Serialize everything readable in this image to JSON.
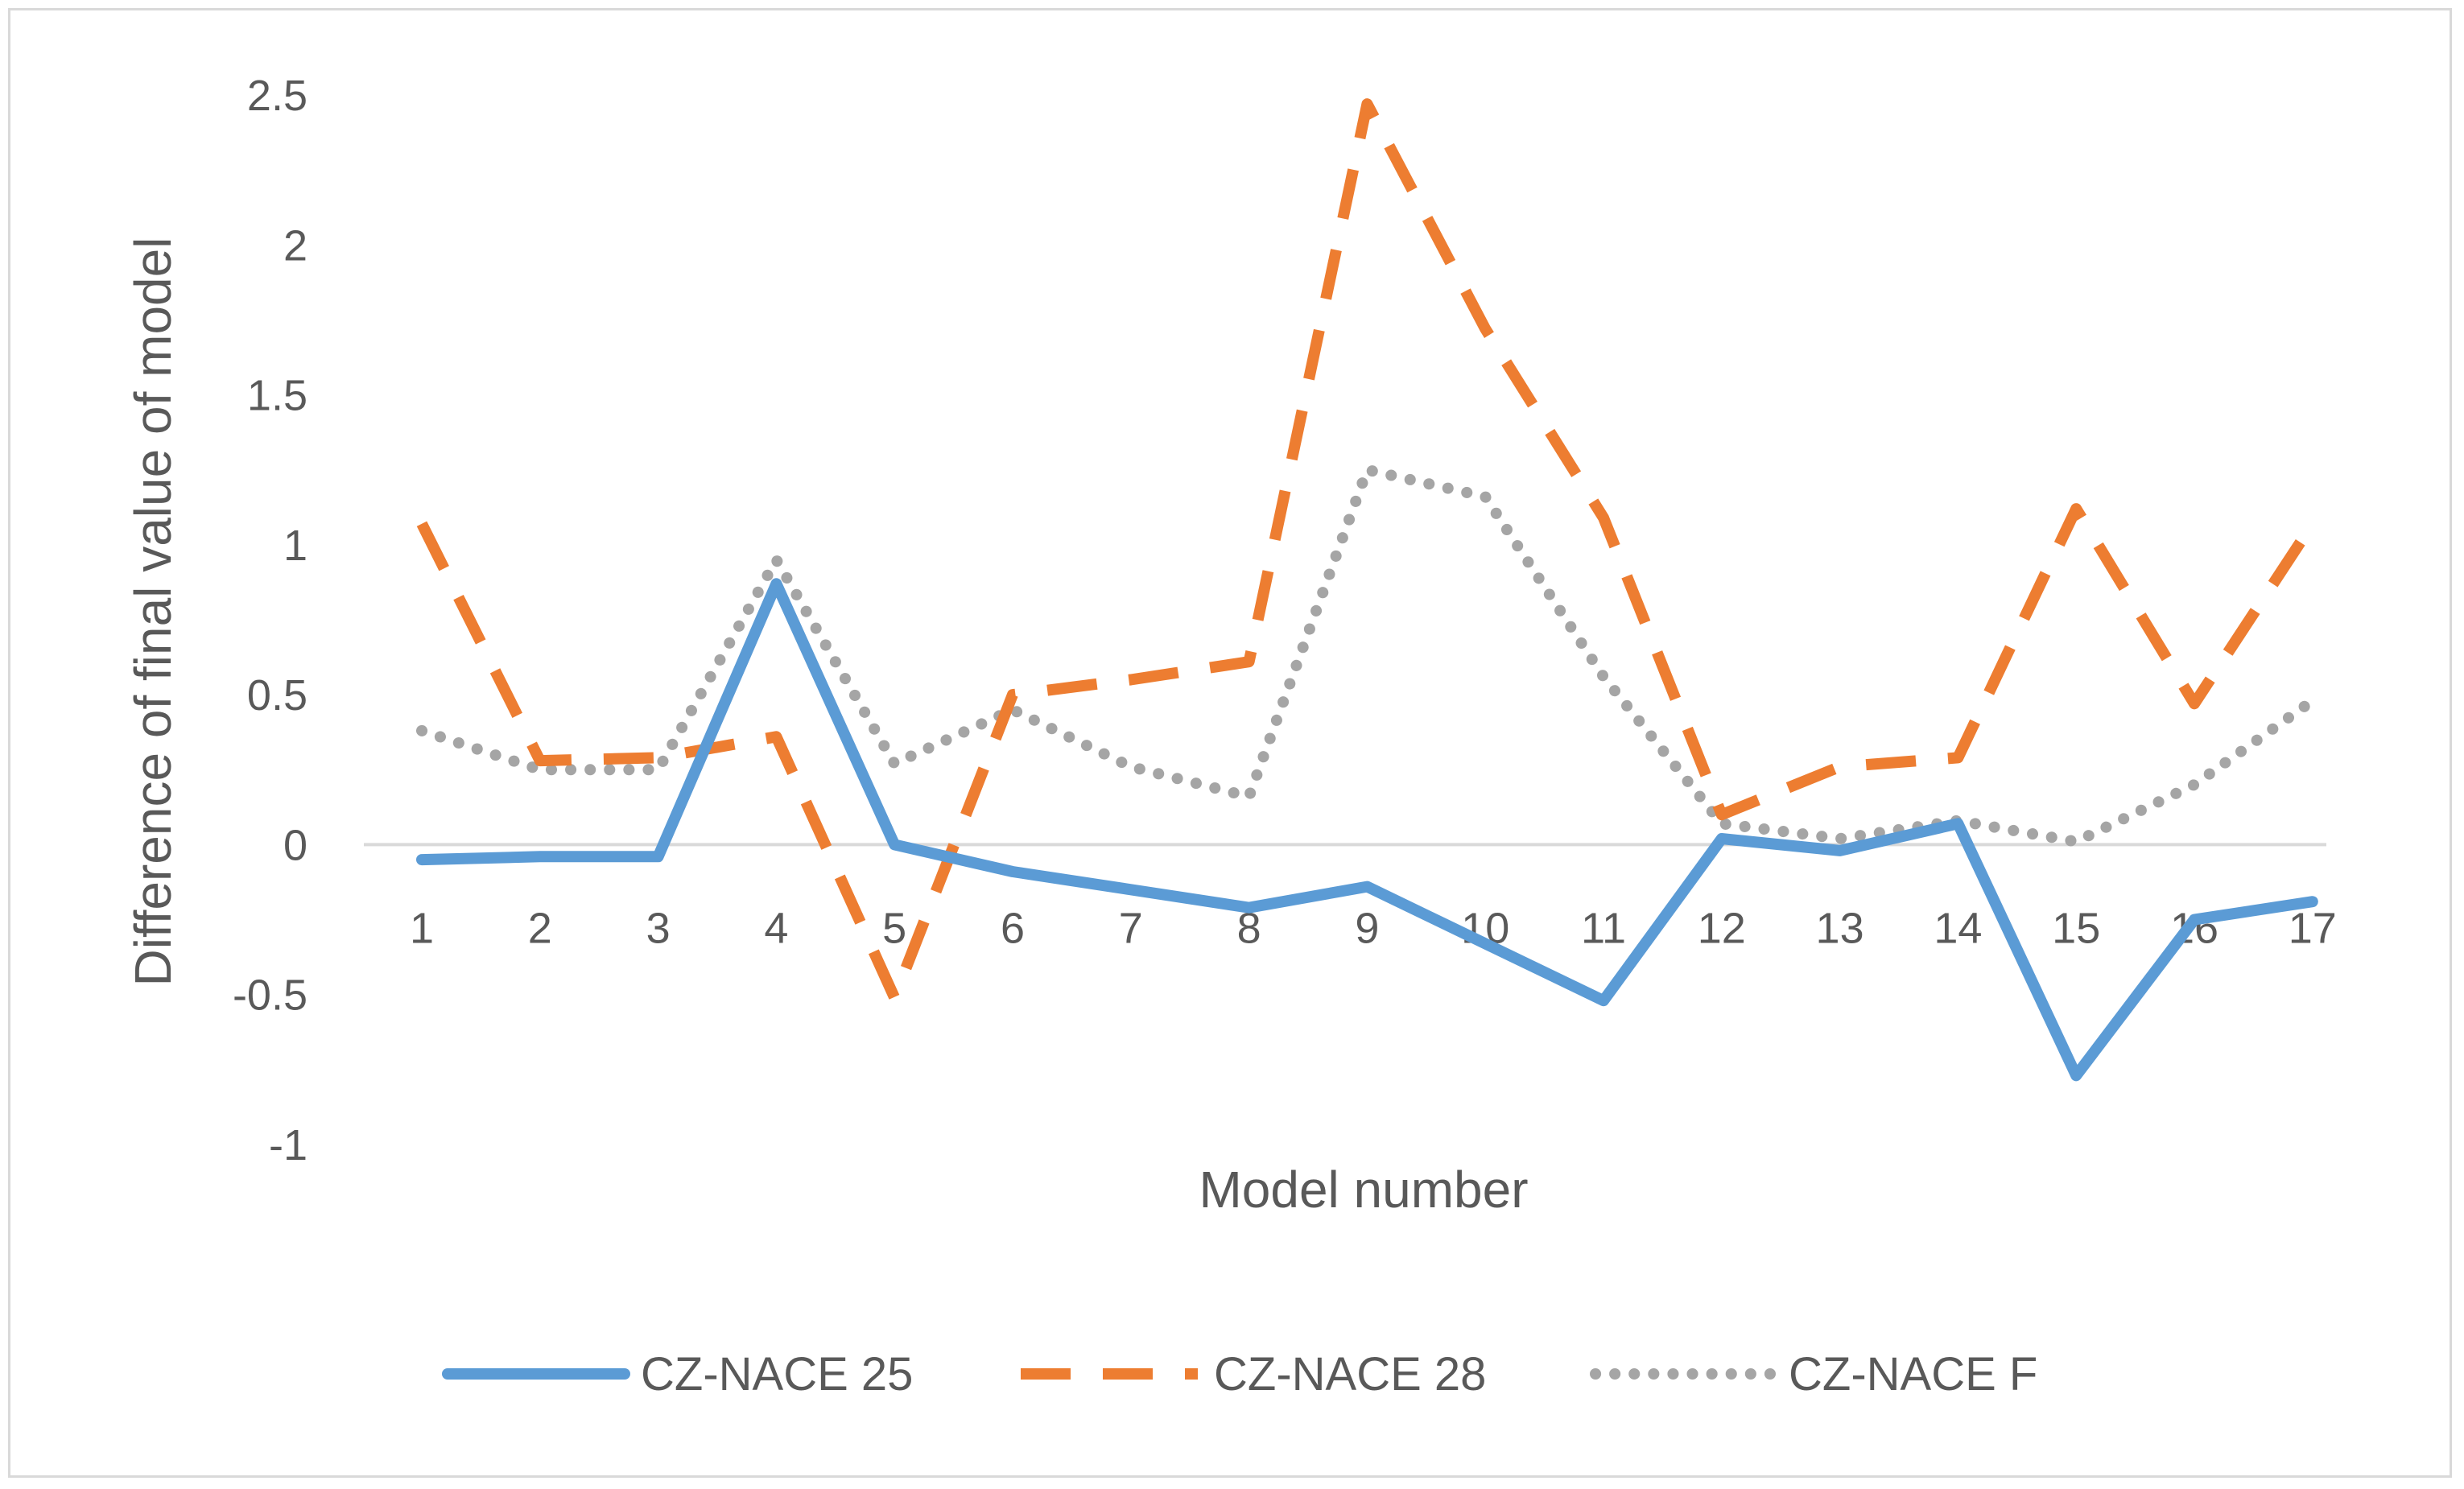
{
  "chart_data": {
    "type": "line",
    "title": "",
    "xlabel": "Model number",
    "ylabel": "Difference of final value of model",
    "categories": [
      "1",
      "2",
      "3",
      "4",
      "5",
      "6",
      "7",
      "8",
      "9",
      "10",
      "11",
      "12",
      "13",
      "14",
      "15",
      "16",
      "17"
    ],
    "ylim": [
      -1,
      2.5
    ],
    "yticks": [
      "-1",
      "-0.5",
      "0",
      "0.5",
      "1",
      "1.5",
      "2",
      "2.5"
    ],
    "ytick_values": [
      -1,
      -0.5,
      0,
      0.5,
      1,
      1.5,
      2,
      2.5
    ],
    "grid": false,
    "legend": "bottom",
    "series": [
      {
        "name": "CZ-NACE 25",
        "style": "solid",
        "color": "#5b9bd5",
        "values": [
          -0.05,
          -0.04,
          -0.04,
          0.87,
          0.0,
          -0.09,
          -0.15,
          -0.21,
          -0.14,
          -0.33,
          -0.52,
          0.02,
          -0.02,
          0.07,
          -0.77,
          -0.25,
          -0.19
        ]
      },
      {
        "name": "CZ-NACE 28",
        "style": "dashed",
        "color": "#ed7d31",
        "values": [
          1.07,
          0.28,
          0.29,
          0.36,
          -0.51,
          0.5,
          0.55,
          0.61,
          2.47,
          1.72,
          1.09,
          0.1,
          0.26,
          0.29,
          1.12,
          0.47,
          1.07
        ]
      },
      {
        "name": "CZ-NACE F",
        "style": "dotted",
        "color": "#a5a5a5",
        "values": [
          0.38,
          0.25,
          0.25,
          0.95,
          0.27,
          0.45,
          0.26,
          0.16,
          1.25,
          1.16,
          0.56,
          0.07,
          0.02,
          0.08,
          0.01,
          0.2,
          0.48
        ]
      }
    ]
  }
}
